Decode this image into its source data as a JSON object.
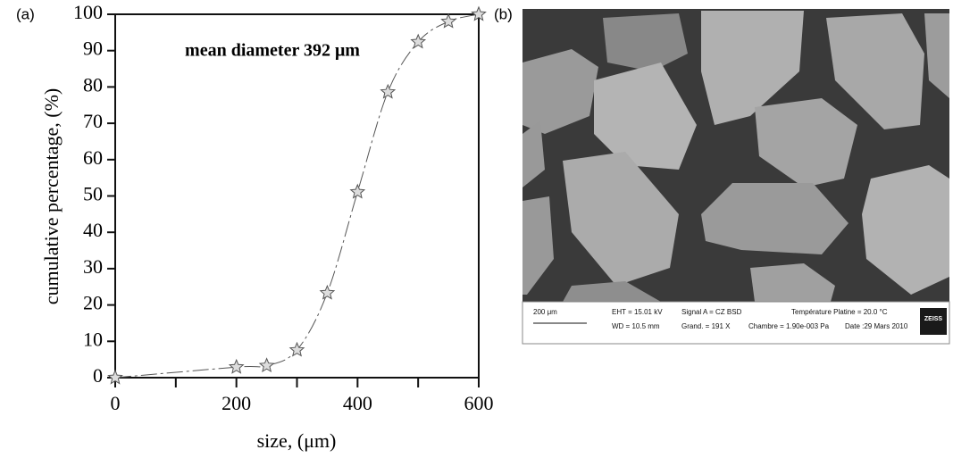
{
  "chart_data": {
    "type": "line",
    "ylabel": "cumulative percentage, (%)",
    "xlabel": "size, (μm)",
    "annotation": "mean diameter 392 μm",
    "x": [
      0,
      200,
      250,
      300,
      350,
      400,
      450,
      500,
      550,
      600
    ],
    "series": [
      {
        "color": "#555555",
        "values": [
          0,
          2.9,
          3.3,
          7.6,
          23.3,
          51.1,
          78.6,
          92.4,
          98,
          100
        ]
      }
    ],
    "xlim": [
      0,
      600
    ],
    "xticks": [
      0,
      200,
      400,
      600
    ],
    "xminorticks": [
      100,
      300,
      500
    ],
    "ylim": [
      0,
      100
    ],
    "yticks": [
      0,
      10,
      20,
      30,
      40,
      50,
      60,
      70,
      80,
      90,
      100
    ]
  },
  "panel_labels": [
    "(a)",
    "(b)"
  ],
  "sem_image": {
    "scale": "200 μm",
    "eht": "EHT = 15.01 kV",
    "wd": "WD = 10.5 mm",
    "signal": "Signal A = CZ BSD",
    "grand": "Grand. =    191 X",
    "temperature": "Température Platine =  20.0 °C",
    "chambre": "Chambre = 1.90e-003 Pa",
    "date": "Date :29 Mars 2010",
    "brand": "ZEISS"
  }
}
